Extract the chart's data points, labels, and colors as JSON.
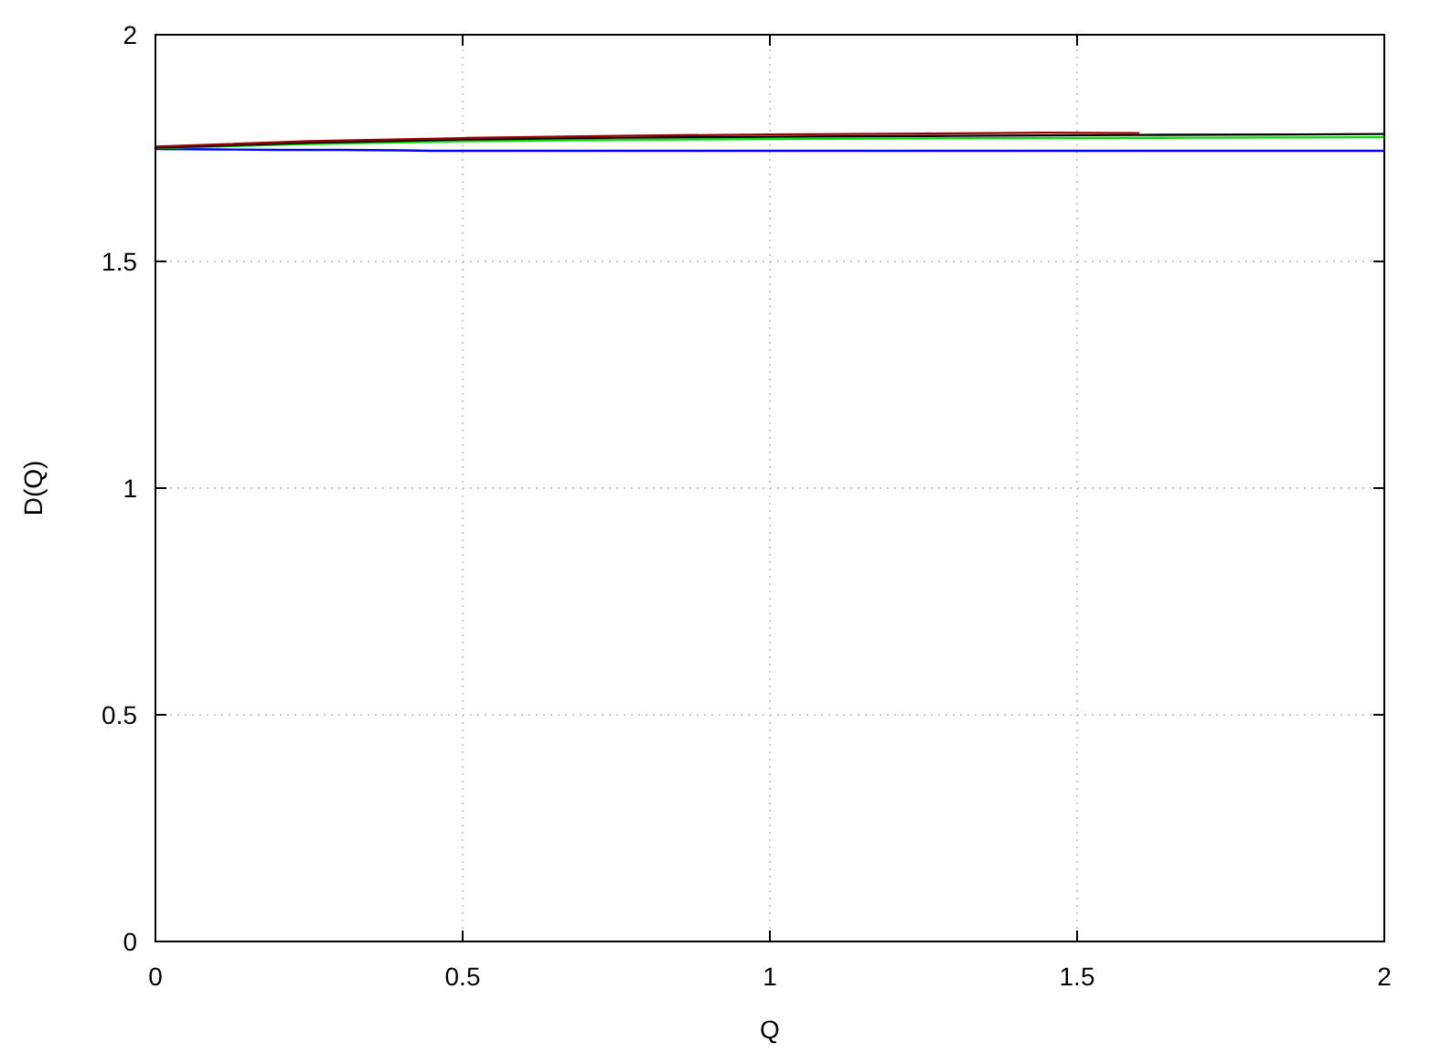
{
  "chart_data": {
    "type": "line",
    "xlabel": "Q",
    "ylabel": "D(Q)",
    "xlim": [
      0,
      2
    ],
    "ylim": [
      0,
      2
    ],
    "xticks": [
      0,
      0.5,
      1,
      1.5,
      2
    ],
    "yticks": [
      0,
      0.5,
      1,
      1.5,
      2
    ],
    "grid": true,
    "series": [
      {
        "color": "#0000ff",
        "x": [
          0,
          0.1,
          0.2,
          0.3,
          0.4,
          0.45,
          0.5,
          1,
          1.5,
          2
        ],
        "values": [
          1.748,
          1.747,
          1.746,
          1.746,
          1.745,
          1.744,
          1.744,
          1.744,
          1.744,
          1.744
        ]
      },
      {
        "color": "#00dd00",
        "x": [
          0,
          0.25,
          0.5,
          0.75,
          1,
          1.35,
          1.7,
          2
        ],
        "values": [
          1.75,
          1.759,
          1.765,
          1.768,
          1.77,
          1.772,
          1.773,
          1.774
        ]
      },
      {
        "color": "#000000",
        "x": [
          0,
          0.25,
          0.5,
          0.75,
          1,
          1.3,
          1.6,
          1.85,
          2
        ],
        "values": [
          1.751,
          1.762,
          1.769,
          1.773,
          1.775,
          1.777,
          1.779,
          1.78,
          1.781
        ]
      },
      {
        "color": "#990000",
        "x": [
          0,
          0.25,
          0.5,
          0.75,
          1,
          1.25,
          1.45,
          1.6
        ],
        "values": [
          1.753,
          1.765,
          1.772,
          1.777,
          1.78,
          1.782,
          1.784,
          1.783
        ]
      }
    ]
  }
}
